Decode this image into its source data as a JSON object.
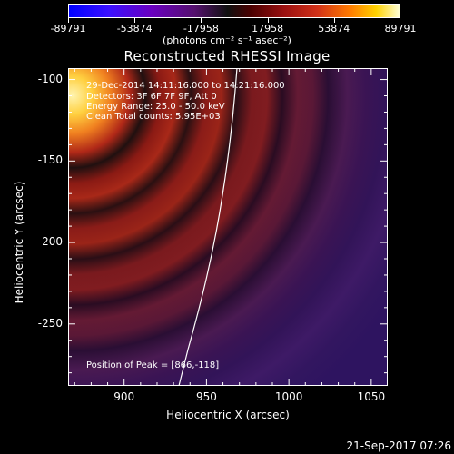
{
  "colorbar": {
    "tick_labels": [
      "-89791",
      "-53874",
      "-17958",
      "17958",
      "53874",
      "89791"
    ],
    "tick_values": [
      -89791,
      -53874,
      -17958,
      17958,
      53874,
      89791
    ],
    "units": "(photons cm⁻² s⁻¹ asec⁻²)"
  },
  "plot": {
    "title": "Reconstructed RHESSI Image",
    "xlabel": "Heliocentric X (arcsec)",
    "ylabel": "Heliocentric Y (arcsec)",
    "x_ticks": [
      "900",
      "950",
      "1000",
      "1050"
    ],
    "x_tick_values": [
      900,
      950,
      1000,
      1050
    ],
    "y_ticks": [
      "-100",
      "-150",
      "-200",
      "-250"
    ],
    "y_tick_values": [
      -100,
      -150,
      -200,
      -250
    ],
    "xlim": [
      866,
      1060
    ],
    "ylim": [
      -288,
      -93
    ],
    "info_lines": [
      "29-Dec-2014 14:11:16.000 to 14:21:16.000",
      "Detectors: 3F 6F 7F 9F, Att 0",
      "Energy Range: 25.0 - 50.0 keV",
      "Clean    Total counts: 5.95E+03"
    ],
    "peak_text": "Position of Peak = [866,-118]",
    "peak": [
      866,
      -118
    ]
  },
  "timestamp": "21-Sep-2017 07:26"
}
